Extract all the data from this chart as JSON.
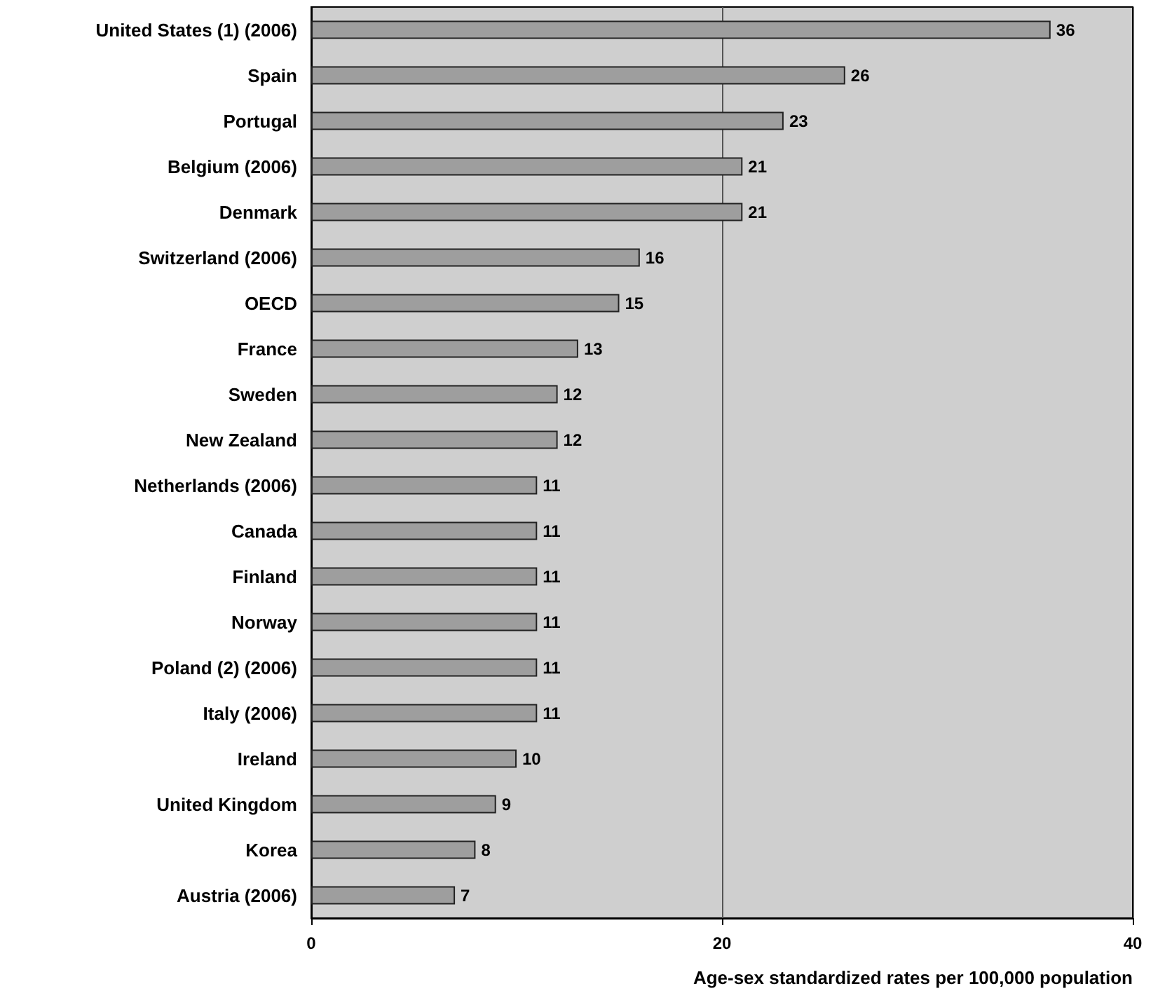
{
  "chart_data": {
    "type": "bar",
    "orientation": "horizontal",
    "xlabel": "Age-sex standardized rates per 100,000 population",
    "categories": [
      "United States (1) (2006)",
      "Spain",
      "Portugal",
      "Belgium (2006)",
      "Denmark",
      "Switzerland (2006)",
      "OECD",
      "France",
      "Sweden",
      "New Zealand",
      "Netherlands (2006)",
      "Canada",
      "Finland",
      "Norway",
      "Poland (2) (2006)",
      "Italy (2006)",
      "Ireland",
      "United Kingdom",
      "Korea",
      "Austria (2006)"
    ],
    "values": [
      36,
      26,
      23,
      21,
      21,
      16,
      15,
      13,
      12,
      12,
      11,
      11,
      11,
      11,
      11,
      11,
      10,
      9,
      8,
      7
    ],
    "color": "#9e9e9e",
    "xlim": [
      0,
      40
    ],
    "xticks": [
      0,
      20,
      40
    ],
    "grid": "x",
    "data_labels": true
  }
}
